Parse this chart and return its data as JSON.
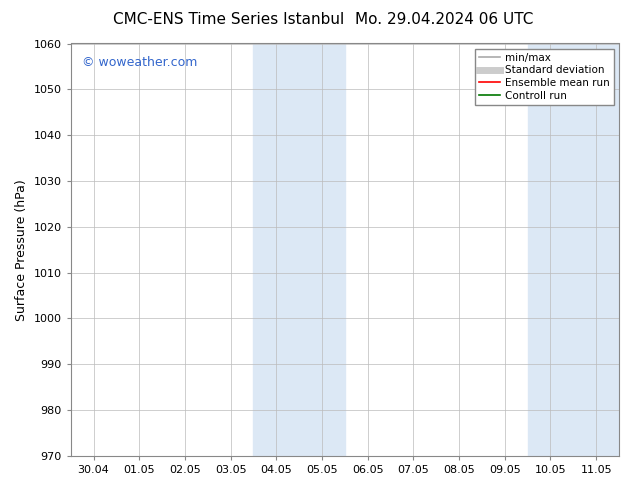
{
  "title_left": "CMC-ENS Time Series Istanbul",
  "title_right": "Mo. 29.04.2024 06 UTC",
  "ylabel": "Surface Pressure (hPa)",
  "ylim": [
    970,
    1060
  ],
  "yticks": [
    970,
    980,
    990,
    1000,
    1010,
    1020,
    1030,
    1040,
    1050,
    1060
  ],
  "xtick_labels": [
    "30.04",
    "01.05",
    "02.05",
    "03.05",
    "04.05",
    "05.05",
    "06.05",
    "07.05",
    "08.05",
    "09.05",
    "10.05",
    "11.05"
  ],
  "bg_color": "#ffffff",
  "plot_bg_color": "#ffffff",
  "shaded_color": "#dce8f5",
  "watermark_text": "© woweather.com",
  "watermark_color": "#3366cc",
  "legend_items": [
    {
      "label": "min/max",
      "color": "#aaaaaa",
      "lw": 1.2,
      "style": "solid"
    },
    {
      "label": "Standard deviation",
      "color": "#cccccc",
      "lw": 5,
      "style": "solid"
    },
    {
      "label": "Ensemble mean run",
      "color": "#ff0000",
      "lw": 1.2,
      "style": "solid"
    },
    {
      "label": "Controll run",
      "color": "#007700",
      "lw": 1.2,
      "style": "solid"
    }
  ],
  "grid_color": "#bbbbbb",
  "title_fontsize": 11,
  "tick_fontsize": 8,
  "ylabel_fontsize": 9,
  "watermark_fontsize": 9,
  "legend_fontsize": 7.5
}
